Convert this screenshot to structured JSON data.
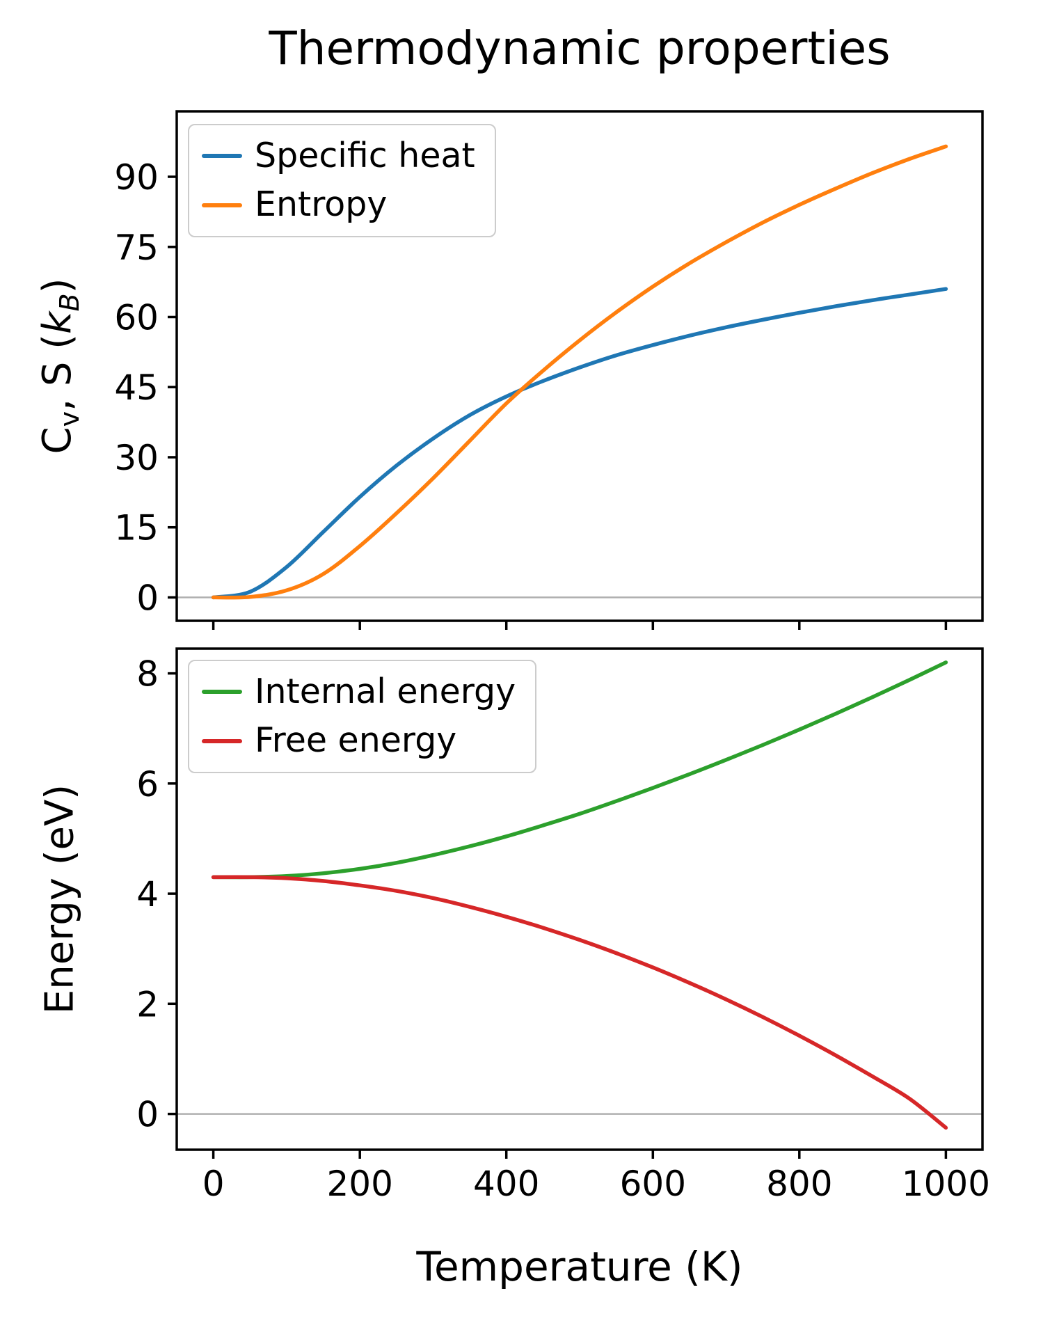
{
  "title": "Thermodynamic properties",
  "xlabel": "Temperature (K)",
  "colors": {
    "specific_heat": "#1f77b4",
    "entropy": "#ff7f0e",
    "internal_energy": "#2ca02c",
    "free_energy": "#d62728",
    "zero_line": "#b0b0b0",
    "frame": "#000000"
  },
  "chart_data": [
    {
      "type": "line",
      "panel": "top",
      "ylabel": "Cv, S (kB)",
      "ylabel_parts": {
        "c": "C",
        "v_sub": "v",
        "mid": ", S (",
        "k": "k",
        "b_sub": "B",
        "close": ")"
      },
      "xlim": [
        -50,
        1050
      ],
      "ylim": [
        -5,
        104
      ],
      "x_ticks": [
        0,
        200,
        400,
        600,
        800,
        1000
      ],
      "y_ticks": [
        0,
        15,
        30,
        45,
        60,
        75,
        90
      ],
      "grid": false,
      "zero_line": true,
      "legend_position": "upper left",
      "x": [
        0,
        50,
        100,
        150,
        200,
        250,
        300,
        350,
        400,
        450,
        500,
        550,
        600,
        650,
        700,
        750,
        800,
        850,
        900,
        950,
        1000
      ],
      "series": [
        {
          "name": "Specific heat",
          "color": "#1f77b4",
          "values": [
            0,
            1.2,
            6.5,
            14,
            21.5,
            28.2,
            34,
            39,
            43,
            46.3,
            49.2,
            51.8,
            54,
            56,
            57.8,
            59.4,
            60.9,
            62.3,
            63.6,
            64.8,
            66
          ]
        },
        {
          "name": "Entropy",
          "color": "#ff7f0e",
          "values": [
            0,
            0.1,
            1.5,
            5,
            11,
            18,
            25.5,
            33.5,
            41.5,
            48.5,
            55,
            61,
            66.5,
            71.5,
            76,
            80.2,
            84,
            87.5,
            90.8,
            93.8,
            96.5
          ]
        }
      ]
    },
    {
      "type": "line",
      "panel": "bottom",
      "ylabel": "Energy (eV)",
      "xlabel": "Temperature (K)",
      "xlim": [
        -50,
        1050
      ],
      "ylim": [
        -0.65,
        8.45
      ],
      "x_ticks": [
        0,
        200,
        400,
        600,
        800,
        1000
      ],
      "y_ticks": [
        0,
        2,
        4,
        6,
        8
      ],
      "grid": false,
      "zero_line": true,
      "legend_position": "upper left",
      "x": [
        0,
        50,
        100,
        150,
        200,
        250,
        300,
        350,
        400,
        450,
        500,
        550,
        600,
        650,
        700,
        750,
        800,
        850,
        900,
        950,
        1000
      ],
      "series": [
        {
          "name": "Internal energy",
          "color": "#2ca02c",
          "values": [
            4.3,
            4.3,
            4.32,
            4.37,
            4.45,
            4.56,
            4.7,
            4.86,
            5.04,
            5.24,
            5.45,
            5.68,
            5.92,
            6.17,
            6.43,
            6.7,
            6.98,
            7.27,
            7.57,
            7.88,
            8.2
          ]
        },
        {
          "name": "Free energy",
          "color": "#d62728",
          "values": [
            4.3,
            4.3,
            4.28,
            4.23,
            4.15,
            4.05,
            3.92,
            3.76,
            3.58,
            3.38,
            3.16,
            2.92,
            2.66,
            2.38,
            2.08,
            1.76,
            1.42,
            1.06,
            0.68,
            0.28,
            -0.25
          ]
        }
      ]
    }
  ]
}
